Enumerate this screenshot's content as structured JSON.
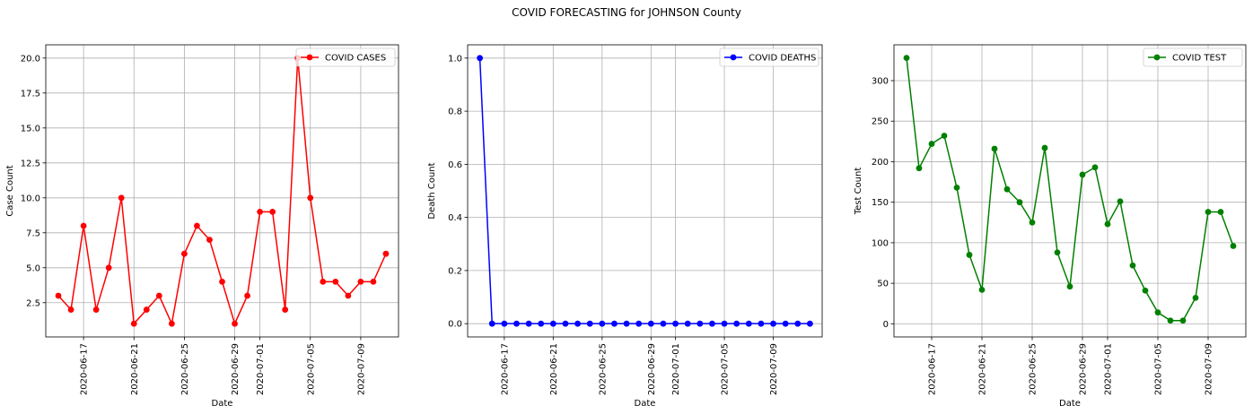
{
  "figure": {
    "suptitle": "COVID FORECASTING for JOHNSON County"
  },
  "colors": {
    "cases": "#ff0000",
    "deaths": "#0000ff",
    "tests": "#008000",
    "grid": "#b0b0b0",
    "axes": "#000000"
  },
  "chart_data": [
    {
      "type": "line",
      "xlabel": "Date",
      "ylabel": "Case Count",
      "x": [
        "2020-06-15",
        "2020-06-16",
        "2020-06-17",
        "2020-06-18",
        "2020-06-19",
        "2020-06-20",
        "2020-06-21",
        "2020-06-22",
        "2020-06-23",
        "2020-06-24",
        "2020-06-25",
        "2020-06-26",
        "2020-06-27",
        "2020-06-28",
        "2020-06-29",
        "2020-06-30",
        "2020-07-01",
        "2020-07-02",
        "2020-07-03",
        "2020-07-04",
        "2020-07-05",
        "2020-07-06",
        "2020-07-07",
        "2020-07-08",
        "2020-07-09",
        "2020-07-10",
        "2020-07-11"
      ],
      "series": [
        {
          "name": "COVID CASES",
          "values": [
            3,
            2,
            8,
            2,
            5,
            10,
            1,
            2,
            3,
            1,
            6,
            8,
            7,
            4,
            1,
            3,
            9,
            9,
            2,
            20,
            10,
            4,
            4,
            3,
            4,
            4,
            6
          ]
        }
      ],
      "xticks": [
        "2020-06-17",
        "2020-06-21",
        "2020-06-25",
        "2020-06-29",
        "2020-07-01",
        "2020-07-05",
        "2020-07-09"
      ],
      "yticks": [
        "2.5",
        "5.0",
        "7.5",
        "10.0",
        "12.5",
        "15.0",
        "17.5",
        "20.0"
      ],
      "ylim": [
        0.05,
        20.95
      ],
      "grid": true,
      "legend": "upper right",
      "color": "#ff0000"
    },
    {
      "type": "line",
      "xlabel": "Date",
      "ylabel": "Death Count",
      "x": [
        "2020-06-15",
        "2020-06-16",
        "2020-06-17",
        "2020-06-18",
        "2020-06-19",
        "2020-06-20",
        "2020-06-21",
        "2020-06-22",
        "2020-06-23",
        "2020-06-24",
        "2020-06-25",
        "2020-06-26",
        "2020-06-27",
        "2020-06-28",
        "2020-06-29",
        "2020-06-30",
        "2020-07-01",
        "2020-07-02",
        "2020-07-03",
        "2020-07-04",
        "2020-07-05",
        "2020-07-06",
        "2020-07-07",
        "2020-07-08",
        "2020-07-09",
        "2020-07-10",
        "2020-07-11",
        "2020-07-12"
      ],
      "series": [
        {
          "name": "COVID DEATHS",
          "values": [
            1,
            0,
            0,
            0,
            0,
            0,
            0,
            0,
            0,
            0,
            0,
            0,
            0,
            0,
            0,
            0,
            0,
            0,
            0,
            0,
            0,
            0,
            0,
            0,
            0,
            0,
            0,
            0
          ]
        }
      ],
      "xticks": [
        "2020-06-17",
        "2020-06-21",
        "2020-06-25",
        "2020-06-29",
        "2020-07-01",
        "2020-07-05",
        "2020-07-09"
      ],
      "yticks": [
        "0.0",
        "0.2",
        "0.4",
        "0.6",
        "0.8",
        "1.0"
      ],
      "ylim": [
        -0.05,
        1.05
      ],
      "grid": true,
      "legend": "upper right",
      "color": "#0000ff"
    },
    {
      "type": "line",
      "xlabel": "Date",
      "ylabel": "Test Count",
      "x": [
        "2020-06-15",
        "2020-06-16",
        "2020-06-17",
        "2020-06-18",
        "2020-06-19",
        "2020-06-20",
        "2020-06-21",
        "2020-06-22",
        "2020-06-23",
        "2020-06-24",
        "2020-06-25",
        "2020-06-26",
        "2020-06-27",
        "2020-06-28",
        "2020-06-29",
        "2020-06-30",
        "2020-07-01",
        "2020-07-02",
        "2020-07-03",
        "2020-07-04",
        "2020-07-05",
        "2020-07-06",
        "2020-07-07",
        "2020-07-08",
        "2020-07-09",
        "2020-07-10",
        "2020-07-11"
      ],
      "series": [
        {
          "name": "COVID TEST",
          "values": [
            328,
            192,
            222,
            232,
            168,
            85,
            42,
            216,
            166,
            150,
            125,
            217,
            88,
            46,
            184,
            193,
            123,
            151,
            72,
            41,
            14,
            4,
            4,
            32,
            138,
            138,
            96
          ]
        }
      ],
      "xticks": [
        "2020-06-17",
        "2020-06-21",
        "2020-06-25",
        "2020-06-29",
        "2020-07-01",
        "2020-07-05",
        "2020-07-09"
      ],
      "yticks": [
        "0",
        "50",
        "100",
        "150",
        "200",
        "250",
        "300"
      ],
      "ylim": [
        -16.2,
        344.2
      ],
      "grid": true,
      "legend": "upper right",
      "color": "#008000"
    }
  ]
}
